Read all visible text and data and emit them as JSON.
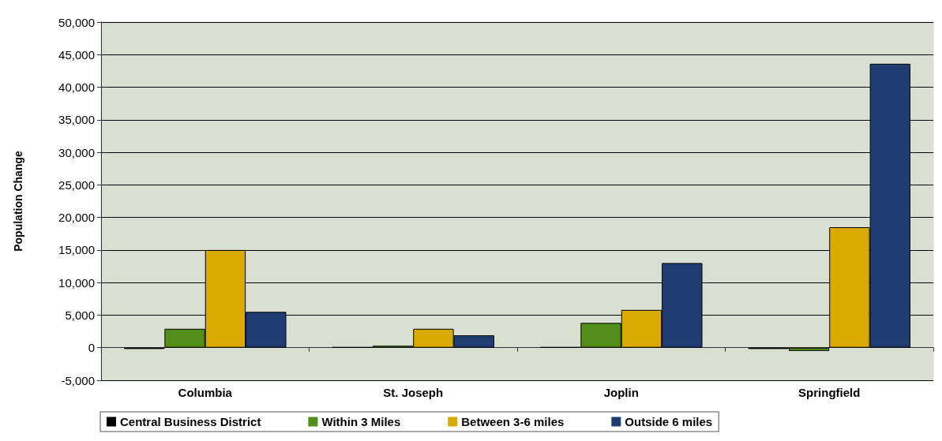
{
  "chart_data": {
    "type": "bar",
    "ylabel": "Population Change",
    "categories": [
      "Columbia",
      "St. Joseph",
      "Joplin",
      "Springfield"
    ],
    "series": [
      {
        "name": "Central Business District",
        "color": "#000000",
        "values": [
          -200,
          100,
          100,
          -200
        ]
      },
      {
        "name": "Within 3 Miles",
        "color": "#548e1a",
        "values": [
          2900,
          300,
          3800,
          -500
        ]
      },
      {
        "name": "Between 3-6 miles",
        "color": "#d9aa00",
        "values": [
          15000,
          2900,
          5800,
          18500
        ]
      },
      {
        "name": "Outside 6 miles",
        "color": "#1f3c73",
        "values": [
          5500,
          1900,
          13000,
          43600
        ]
      }
    ],
    "ylim": [
      -5000,
      50000
    ],
    "yticks": [
      {
        "value": -5000,
        "label": "-5,000"
      },
      0,
      {
        "value": 5000,
        "label": "5,000"
      },
      {
        "value": 10000,
        "label": "10,000"
      },
      {
        "value": 15000,
        "label": "15,000"
      },
      {
        "value": 20000,
        "label": "20,000"
      },
      {
        "value": 25000,
        "label": "25,000"
      },
      {
        "value": 30000,
        "label": "30,000"
      },
      {
        "value": 35000,
        "label": "35,000"
      },
      {
        "value": 40000,
        "label": "40,000"
      },
      {
        "value": 45000,
        "label": "45,000"
      },
      {
        "value": 50000,
        "label": "50,000"
      }
    ],
    "grid": "y",
    "legend": "bottom"
  }
}
